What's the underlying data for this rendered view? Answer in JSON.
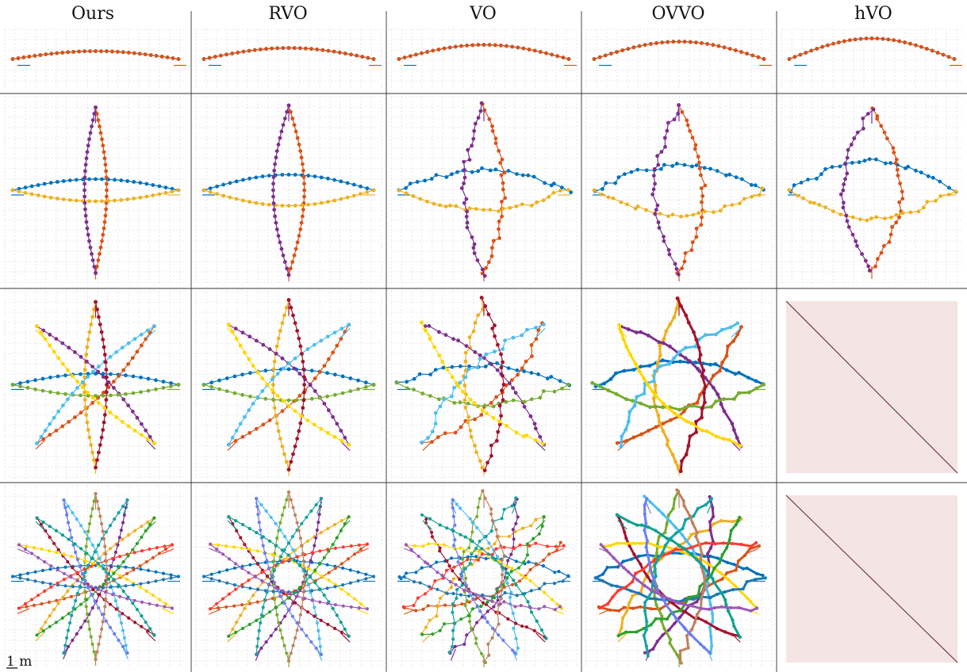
{
  "figure": {
    "columns": [
      "Ours",
      "RVO",
      "VO",
      "OVVO",
      "hVO"
    ],
    "scale_label": "1 m",
    "unavailable_fill": "#f5e4e4"
  },
  "scenarios": [
    {
      "agents": 2,
      "unavailable_methods": []
    },
    {
      "agents": 4,
      "unavailable_methods": []
    },
    {
      "agents": 8,
      "unavailable_methods": [
        "hVO"
      ]
    },
    {
      "agents": 16,
      "unavailable_methods": [
        "hVO"
      ]
    }
  ],
  "agent_colors": [
    "#0072bd",
    "#d95319",
    "#edb120",
    "#7e2f8e",
    "#77ac30",
    "#4dbeee",
    "#a2142f",
    "#ffd700",
    "#1f77b4",
    "#ff3b30",
    "#2ca02c",
    "#17a2a2",
    "#c08060",
    "#6a7fef",
    "#0f9f8f",
    "#9b59b6"
  ]
}
